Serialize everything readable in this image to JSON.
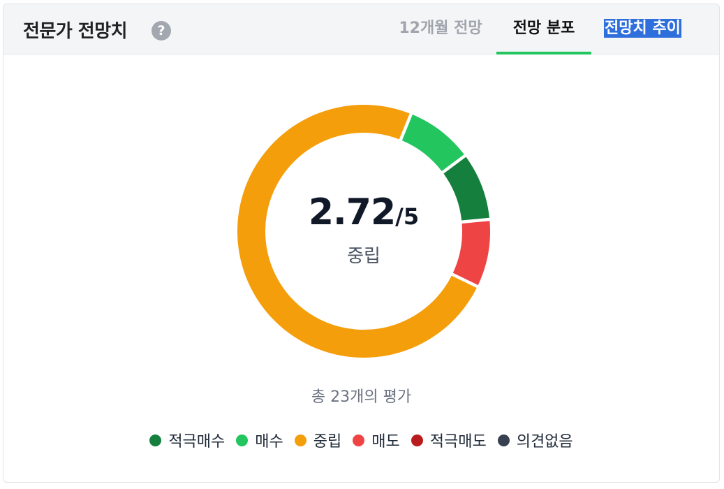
{
  "header": {
    "title": "전문가 전망치",
    "help_glyph": "?"
  },
  "tabs": [
    {
      "label": "12개월 전망",
      "active": false
    },
    {
      "label": "전망 분포",
      "active": true
    },
    {
      "label": "전망치 추이",
      "active": false,
      "highlighted": true
    }
  ],
  "summary": {
    "score": "2.72",
    "score_max": "/5",
    "rating_label": "중립",
    "total_text": "총 23개의 평가"
  },
  "chart_data": {
    "type": "pie",
    "variant": "donut",
    "total": 23,
    "start_angle_deg": 22,
    "categories": [
      "적극매수",
      "매수",
      "중립",
      "매도",
      "적극매도",
      "의견없음"
    ],
    "values": [
      2,
      2,
      17,
      2,
      0,
      0
    ],
    "colors": [
      "#15803d",
      "#22c55e",
      "#f59e0b",
      "#ef4444",
      "#b91c1c",
      "#374151"
    ],
    "draw_order": [
      "매수",
      "적극매수",
      "매도",
      "중립"
    ]
  },
  "legend": [
    {
      "label": "적극매수",
      "color": "#15803d"
    },
    {
      "label": "매수",
      "color": "#22c55e"
    },
    {
      "label": "중립",
      "color": "#f59e0b"
    },
    {
      "label": "매도",
      "color": "#ef4444"
    },
    {
      "label": "적극매도",
      "color": "#b91c1c"
    },
    {
      "label": "의견없음",
      "color": "#374151"
    }
  ]
}
